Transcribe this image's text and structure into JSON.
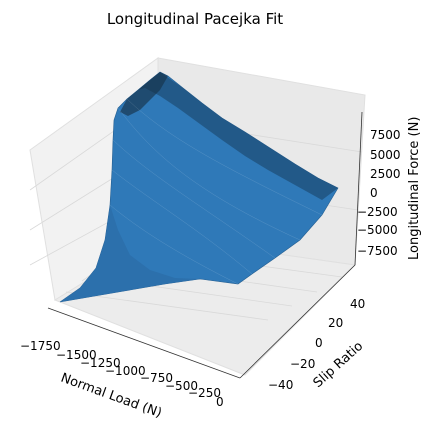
{
  "chart_data": {
    "type": "surface3d",
    "title": "Longitudinal Pacejka Fit",
    "xlabel": "Normal Load (N)",
    "ylabel": "Slip Ratio",
    "zlabel": "Longitudinal Force (N)",
    "x_ticks": [
      "−1750",
      "−1500",
      "−1250",
      "−1000",
      "−750",
      "−500",
      "−250",
      "0"
    ],
    "y_ticks": [
      "−40",
      "−20",
      "0",
      "20",
      "40"
    ],
    "z_ticks": [
      "−7500",
      "−5000",
      "−2500",
      "0",
      "2500",
      "5000",
      "7500"
    ],
    "x_range": [
      -1900,
      0
    ],
    "y_range": [
      -50,
      50
    ],
    "z_range": [
      -9000,
      9000
    ],
    "grid": true,
    "colors": {
      "surface": "#2f79b8",
      "surface_dark": "#16334d",
      "pane": "#f2f2f2",
      "grid": "#d9d9d9"
    },
    "surface_samples": [
      {
        "slip_ratio": -50,
        "load": -1900,
        "force": -8000
      },
      {
        "slip_ratio": -50,
        "load": -50,
        "force": -400
      },
      {
        "slip_ratio": 0,
        "load": -1900,
        "force": 0
      },
      {
        "slip_ratio": 6,
        "load": -1900,
        "force": 9500
      },
      {
        "slip_ratio": 50,
        "load": -1900,
        "force": 8000
      },
      {
        "slip_ratio": 50,
        "load": -50,
        "force": 400
      }
    ]
  }
}
